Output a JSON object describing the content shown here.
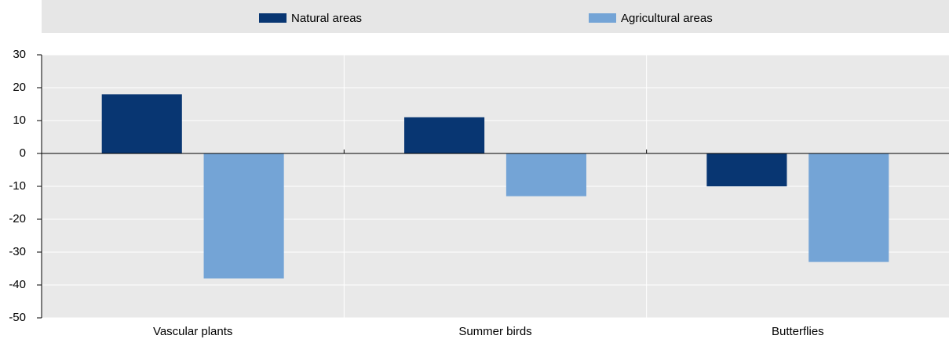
{
  "chart_data": {
    "type": "bar",
    "categories": [
      "Vascular plants",
      "Summer birds",
      "Butterflies"
    ],
    "series": [
      {
        "name": "Natural areas",
        "color": "#083672",
        "values": [
          18,
          11,
          -10
        ]
      },
      {
        "name": "Agricultural areas",
        "color": "#74a4d6",
        "values": [
          -38,
          -13,
          -33
        ]
      }
    ],
    "ylim": [
      -50,
      30
    ],
    "yticks": [
      30,
      20,
      10,
      0,
      -10,
      -20,
      -30,
      -40,
      -50
    ],
    "grid": true,
    "legend": "top"
  }
}
